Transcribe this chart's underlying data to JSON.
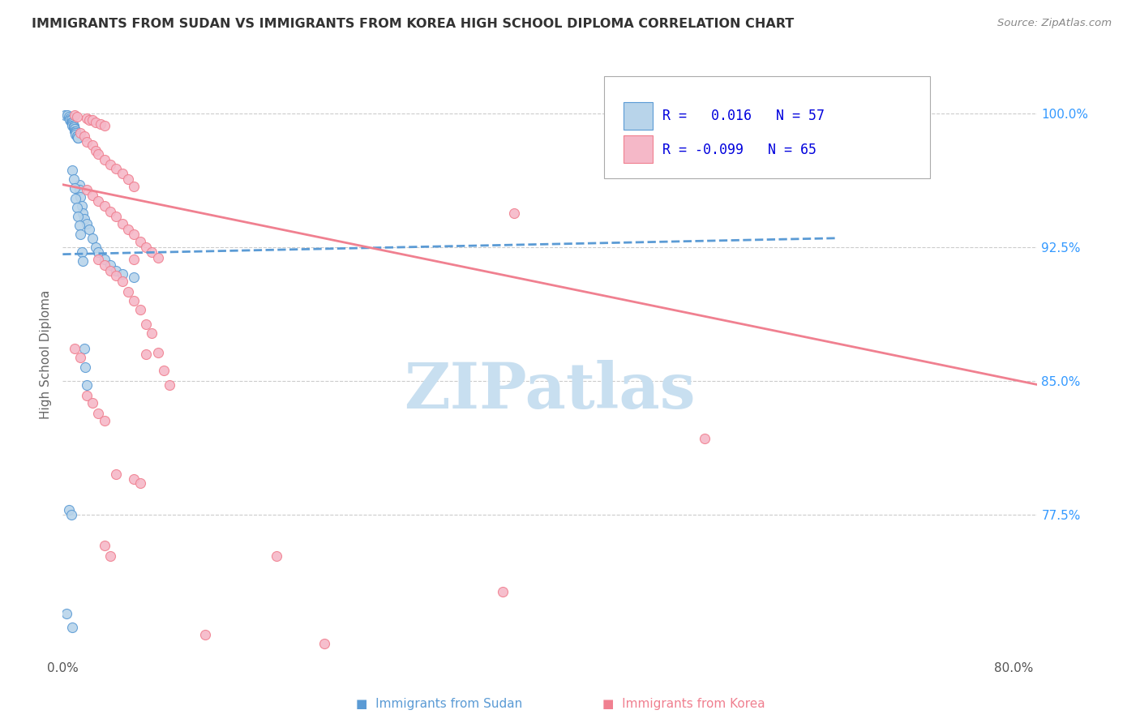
{
  "title": "IMMIGRANTS FROM SUDAN VS IMMIGRANTS FROM KOREA HIGH SCHOOL DIPLOMA CORRELATION CHART",
  "source": "Source: ZipAtlas.com",
  "ylabel": "High School Diploma",
  "ytick_labels": [
    "100.0%",
    "92.5%",
    "85.0%",
    "77.5%"
  ],
  "ytick_values": [
    1.0,
    0.925,
    0.85,
    0.775
  ],
  "xlim": [
    0.0,
    0.82
  ],
  "ylim": [
    0.695,
    1.035
  ],
  "watermark": "ZIPatlas",
  "legend_sudan_r": "0.016",
  "legend_sudan_n": "57",
  "legend_korea_r": "-0.099",
  "legend_korea_n": "65",
  "sudan_face_color": "#b8d4ea",
  "korea_face_color": "#f5b8c8",
  "sudan_edge_color": "#5b9bd5",
  "korea_edge_color": "#f08090",
  "sudan_line_color": "#5b9bd5",
  "korea_line_color": "#f08090",
  "right_yaxis_color": "#3399ff",
  "background_color": "#ffffff",
  "grid_color": "#cccccc",
  "title_color": "#333333",
  "watermark_color": "#c8dff0",
  "sudan_dots": [
    [
      0.002,
      0.999
    ],
    [
      0.004,
      0.999
    ],
    [
      0.005,
      0.998
    ],
    [
      0.006,
      0.997
    ],
    [
      0.006,
      0.996
    ],
    [
      0.007,
      0.996
    ],
    [
      0.007,
      0.995
    ],
    [
      0.008,
      0.995
    ],
    [
      0.008,
      0.994
    ],
    [
      0.008,
      0.993
    ],
    [
      0.009,
      0.993
    ],
    [
      0.009,
      0.992
    ],
    [
      0.009,
      0.992
    ],
    [
      0.01,
      0.991
    ],
    [
      0.01,
      0.991
    ],
    [
      0.01,
      0.99
    ],
    [
      0.011,
      0.99
    ],
    [
      0.011,
      0.989
    ],
    [
      0.011,
      0.989
    ],
    [
      0.011,
      0.988
    ],
    [
      0.012,
      0.987
    ],
    [
      0.012,
      0.987
    ],
    [
      0.013,
      0.986
    ],
    [
      0.013,
      0.986
    ],
    [
      0.014,
      0.96
    ],
    [
      0.014,
      0.957
    ],
    [
      0.015,
      0.953
    ],
    [
      0.016,
      0.948
    ],
    [
      0.017,
      0.944
    ],
    [
      0.018,
      0.941
    ],
    [
      0.02,
      0.938
    ],
    [
      0.022,
      0.935
    ],
    [
      0.025,
      0.93
    ],
    [
      0.028,
      0.925
    ],
    [
      0.03,
      0.922
    ],
    [
      0.035,
      0.918
    ],
    [
      0.04,
      0.915
    ],
    [
      0.045,
      0.912
    ],
    [
      0.05,
      0.91
    ],
    [
      0.06,
      0.908
    ],
    [
      0.008,
      0.968
    ],
    [
      0.009,
      0.963
    ],
    [
      0.01,
      0.958
    ],
    [
      0.011,
      0.952
    ],
    [
      0.012,
      0.947
    ],
    [
      0.013,
      0.942
    ],
    [
      0.014,
      0.937
    ],
    [
      0.015,
      0.932
    ],
    [
      0.016,
      0.922
    ],
    [
      0.017,
      0.917
    ],
    [
      0.018,
      0.868
    ],
    [
      0.019,
      0.858
    ],
    [
      0.02,
      0.848
    ],
    [
      0.005,
      0.778
    ],
    [
      0.007,
      0.775
    ],
    [
      0.003,
      0.72
    ],
    [
      0.008,
      0.712
    ]
  ],
  "korea_dots": [
    [
      0.01,
      0.999
    ],
    [
      0.012,
      0.998
    ],
    [
      0.02,
      0.997
    ],
    [
      0.022,
      0.996
    ],
    [
      0.025,
      0.996
    ],
    [
      0.028,
      0.995
    ],
    [
      0.032,
      0.994
    ],
    [
      0.035,
      0.993
    ],
    [
      0.015,
      0.989
    ],
    [
      0.018,
      0.987
    ],
    [
      0.02,
      0.984
    ],
    [
      0.025,
      0.982
    ],
    [
      0.028,
      0.979
    ],
    [
      0.03,
      0.977
    ],
    [
      0.035,
      0.974
    ],
    [
      0.04,
      0.971
    ],
    [
      0.045,
      0.969
    ],
    [
      0.05,
      0.966
    ],
    [
      0.055,
      0.963
    ],
    [
      0.06,
      0.959
    ],
    [
      0.02,
      0.957
    ],
    [
      0.025,
      0.954
    ],
    [
      0.03,
      0.951
    ],
    [
      0.035,
      0.948
    ],
    [
      0.04,
      0.945
    ],
    [
      0.045,
      0.942
    ],
    [
      0.05,
      0.938
    ],
    [
      0.055,
      0.935
    ],
    [
      0.06,
      0.932
    ],
    [
      0.065,
      0.928
    ],
    [
      0.07,
      0.925
    ],
    [
      0.075,
      0.922
    ],
    [
      0.08,
      0.919
    ],
    [
      0.03,
      0.918
    ],
    [
      0.035,
      0.915
    ],
    [
      0.04,
      0.912
    ],
    [
      0.045,
      0.909
    ],
    [
      0.05,
      0.906
    ],
    [
      0.055,
      0.9
    ],
    [
      0.06,
      0.895
    ],
    [
      0.065,
      0.89
    ],
    [
      0.07,
      0.882
    ],
    [
      0.075,
      0.877
    ],
    [
      0.08,
      0.866
    ],
    [
      0.085,
      0.856
    ],
    [
      0.09,
      0.848
    ],
    [
      0.01,
      0.868
    ],
    [
      0.015,
      0.863
    ],
    [
      0.02,
      0.842
    ],
    [
      0.025,
      0.838
    ],
    [
      0.03,
      0.832
    ],
    [
      0.035,
      0.828
    ],
    [
      0.045,
      0.798
    ],
    [
      0.06,
      0.795
    ],
    [
      0.065,
      0.793
    ],
    [
      0.54,
      0.818
    ],
    [
      0.035,
      0.758
    ],
    [
      0.04,
      0.752
    ],
    [
      0.18,
      0.752
    ],
    [
      0.37,
      0.732
    ],
    [
      0.12,
      0.708
    ],
    [
      0.22,
      0.703
    ],
    [
      0.06,
      0.918
    ],
    [
      0.38,
      0.944
    ],
    [
      0.07,
      0.865
    ]
  ],
  "sudan_trend_x": [
    0.0,
    0.65
  ],
  "sudan_trend_y": [
    0.921,
    0.93
  ],
  "korea_trend_x": [
    0.0,
    0.82
  ],
  "korea_trend_y": [
    0.96,
    0.848
  ]
}
